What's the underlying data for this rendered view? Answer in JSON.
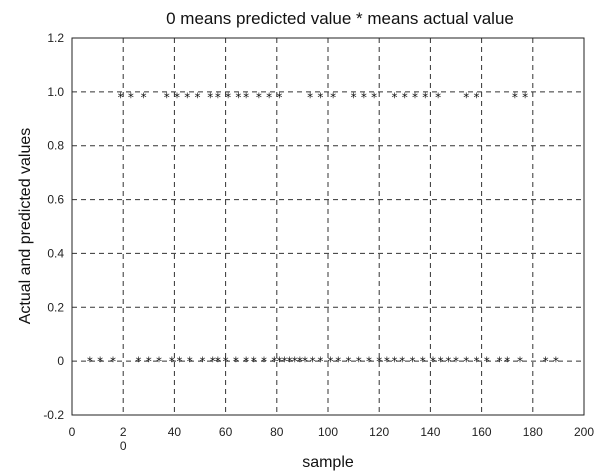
{
  "chart_data": {
    "type": "scatter",
    "title": "0 means predicted value * means actual value",
    "xlabel": "sample",
    "ylabel": "Actual and predicted values",
    "xlim": [
      0,
      200
    ],
    "ylim": [
      -0.2,
      1.2
    ],
    "xticks": [
      0,
      20,
      40,
      60,
      80,
      100,
      120,
      140,
      160,
      180,
      200
    ],
    "xtick_labels": [
      "0",
      "2\n0",
      "40",
      "60",
      "80",
      "100",
      "120",
      "140",
      "160",
      "180",
      "200"
    ],
    "yticks": [
      -0.2,
      0,
      0.2,
      0.4,
      0.6,
      0.8,
      1.0,
      1.2
    ],
    "ytick_labels": [
      "-0.2",
      "0",
      "0.2",
      "0.4",
      "0.6",
      "0.8",
      "1.0",
      "1.2"
    ],
    "grid": true,
    "marker": "*",
    "series": [
      {
        "x": [
          7,
          11,
          16,
          26,
          30,
          34,
          39,
          42,
          46,
          51,
          55,
          57,
          60,
          64,
          68,
          71,
          75,
          79,
          81,
          83,
          85,
          87,
          89,
          91,
          94,
          97,
          101,
          104,
          108,
          112,
          116,
          120,
          123,
          126,
          129,
          133,
          137,
          141,
          144,
          147,
          150,
          154,
          158,
          162,
          167,
          170,
          175,
          185,
          189
        ],
        "y": [
          0.01,
          0.01,
          0.01,
          0.01,
          0.01,
          0.01,
          0.01,
          0.01,
          0.01,
          0.01,
          0.01,
          0.01,
          0.01,
          0.01,
          0.01,
          0.01,
          0.01,
          0.01,
          0.01,
          0.01,
          0.01,
          0.01,
          0.01,
          0.01,
          0.01,
          0.01,
          0.01,
          0.01,
          0.01,
          0.01,
          0.01,
          0.01,
          0.01,
          0.01,
          0.01,
          0.01,
          0.01,
          0.01,
          0.01,
          0.01,
          0.01,
          0.01,
          0.01,
          0.01,
          0.01,
          0.01,
          0.01,
          0.01,
          0.01
        ]
      },
      {
        "x": [
          19,
          23,
          28,
          37,
          41,
          45,
          49,
          54,
          57,
          61,
          65,
          68,
          73,
          77,
          81,
          93,
          97,
          102,
          110,
          114,
          118,
          126,
          130,
          134,
          138,
          143,
          154,
          158,
          173,
          177
        ],
        "y": [
          0.99,
          0.99,
          0.99,
          0.99,
          0.99,
          0.99,
          0.99,
          0.99,
          0.99,
          0.99,
          0.99,
          0.99,
          0.99,
          0.99,
          0.99,
          0.99,
          0.99,
          0.99,
          0.99,
          0.99,
          0.99,
          0.99,
          0.99,
          0.99,
          0.99,
          0.99,
          0.99,
          0.99,
          0.99,
          0.99
        ]
      }
    ]
  }
}
